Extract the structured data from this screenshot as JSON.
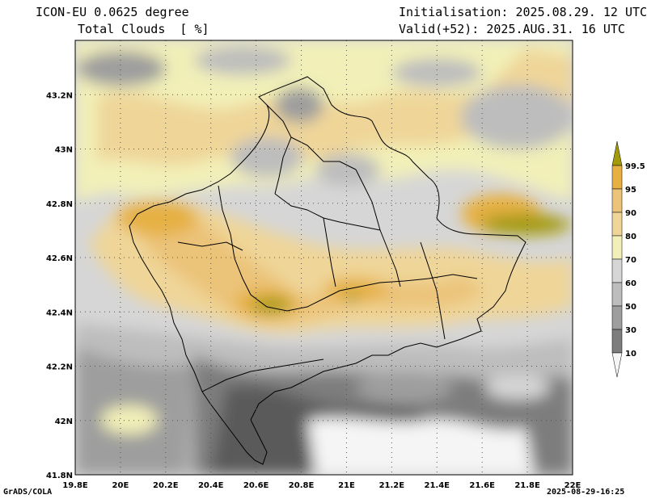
{
  "header": {
    "model": "ICON-EU 0.0625 degree",
    "field": "Total Clouds  [ %]",
    "init": "Initialisation: 2025.08.29. 12 UTC",
    "valid": "Valid(+52): 2025.AUG.31. 16 UTC"
  },
  "footer": {
    "credit": "GrADS/COLA",
    "timestamp": "2025-08-29-16:25"
  },
  "map": {
    "lon_range": [
      19.8,
      22.0
    ],
    "lat_range": [
      41.8,
      43.4
    ],
    "lon_ticks": [
      "19.8E",
      "20E",
      "20.2E",
      "20.4E",
      "20.6E",
      "20.8E",
      "21E",
      "21.2E",
      "21.4E",
      "21.6E",
      "21.8E",
      "22E"
    ],
    "lat_ticks": [
      "41.8N",
      "42N",
      "42.2N",
      "42.4N",
      "42.6N",
      "42.8N",
      "43N",
      "43.2N"
    ],
    "gridlines": "dotted"
  },
  "colorbar": {
    "levels": [
      "10",
      "30",
      "50",
      "60",
      "70",
      "80",
      "90",
      "95",
      "99.5"
    ],
    "colors": [
      "#f5f5f5",
      "#5a5a5a",
      "#7d7d7d",
      "#9e9e9e",
      "#bdbdbd",
      "#d6d6d6",
      "#f2f0b8",
      "#efd598",
      "#ebc379",
      "#e6b042",
      "#a39a0a"
    ]
  }
}
